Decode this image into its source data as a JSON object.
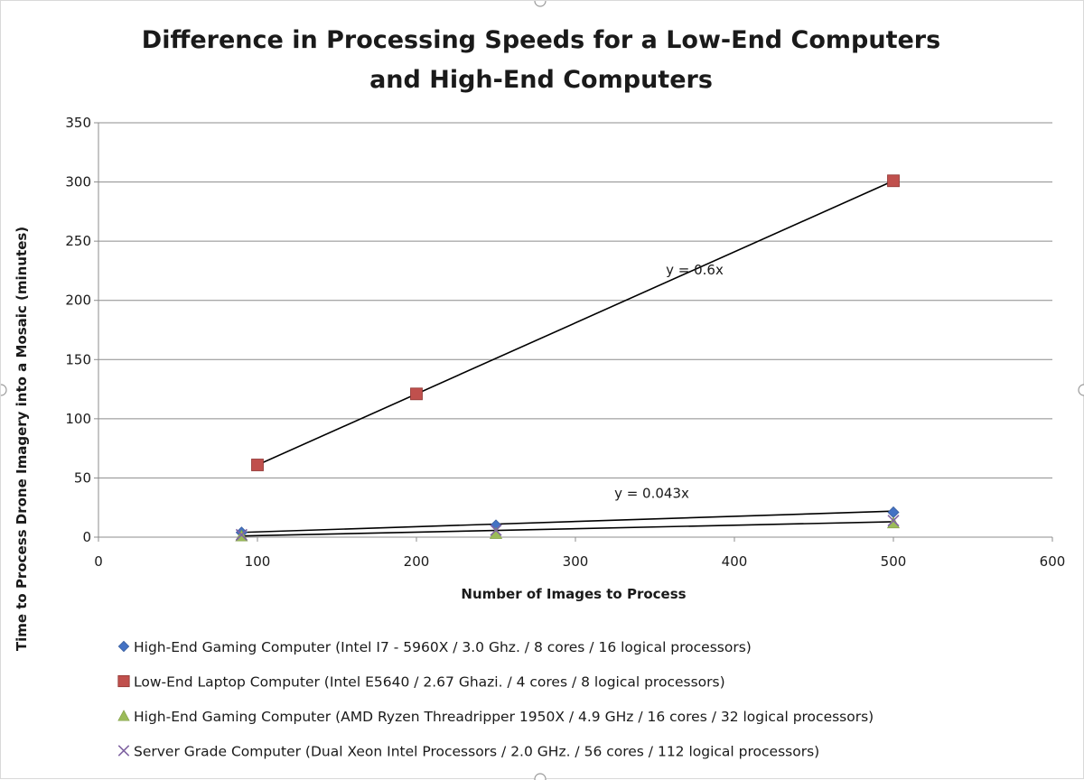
{
  "chart_data": {
    "type": "scatter",
    "title": "Difference in Processing Speeds for a Low-End Computers and High-End Computers",
    "title_lines": [
      "Difference in Processing Speeds for a Low-End Computers",
      "and High-End Computers"
    ],
    "xlabel": "Number of Images to Process",
    "ylabel": "Time to Process Drone Imagery into a Mosaic (minutes)",
    "xlim": [
      0,
      600
    ],
    "ylim": [
      0,
      350
    ],
    "x_ticks": [
      0,
      100,
      200,
      300,
      400,
      500,
      600
    ],
    "y_ticks": [
      0,
      50,
      100,
      150,
      200,
      250,
      300,
      350
    ],
    "grid": "horizontal",
    "legend_position": "bottom",
    "series": [
      {
        "name": "High-End Gaming Computer  (Intel I7 - 5960X / 3.0 Ghz. / 8 cores / 16 logical processors)",
        "marker": "diamond",
        "color": "#4472C4",
        "x": [
          90,
          250,
          500
        ],
        "y": [
          4,
          10,
          21
        ]
      },
      {
        "name": "Low-End Laptop Computer (Intel E5640 / 2.67 Ghazi. / 4 cores / 8 logical processors)",
        "marker": "square",
        "color": "#C0504D",
        "x": [
          100,
          200,
          500
        ],
        "y": [
          61,
          121,
          301
        ]
      },
      {
        "name": "High-End Gaming Computer (AMD Ryzen Threadripper 1950X / 4.9 GHz / 16 cores / 32 logical processors)",
        "marker": "triangle",
        "color": "#9BBB59",
        "x": [
          90,
          250,
          500
        ],
        "y": [
          1,
          3,
          12
        ]
      },
      {
        "name": "Server Grade Computer (Dual Xeon Intel Processors / 2.0 GHz. / 56 cores / 112 logical processors)",
        "marker": "x",
        "color": "#8064A2",
        "x": [
          90,
          250,
          500
        ],
        "y": [
          2,
          6,
          14
        ]
      }
    ],
    "trendlines": [
      {
        "from": [
          100,
          61
        ],
        "to": [
          500,
          301
        ]
      },
      {
        "from": [
          90,
          4
        ],
        "to": [
          500,
          22
        ]
      },
      {
        "from": [
          90,
          1
        ],
        "to": [
          500,
          13
        ]
      }
    ],
    "annotations": [
      {
        "text": "y = 0.6x",
        "x": 375,
        "y": 222
      },
      {
        "text": "y = 0.043x",
        "x": 348,
        "y": 33
      }
    ]
  }
}
